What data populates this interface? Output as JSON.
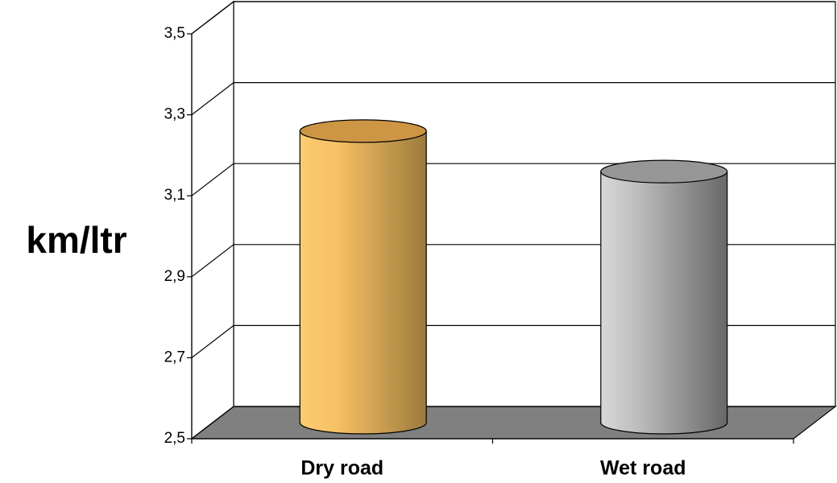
{
  "chart_data": {
    "type": "bar3d-cylinder",
    "ylabel": "km/ltr",
    "categories": [
      "Dry road",
      "Wet road"
    ],
    "values": [
      3.22,
      3.12
    ],
    "colors": [
      "#f0b050",
      "#b0b0b0"
    ],
    "ylim": [
      2.5,
      3.5
    ],
    "yticks": [
      {
        "value": 2.5,
        "label": "2,5"
      },
      {
        "value": 2.7,
        "label": "2,7"
      },
      {
        "value": 2.9,
        "label": "2,9"
      },
      {
        "value": 3.1,
        "label": "3,1"
      },
      {
        "value": 3.3,
        "label": "3,3"
      },
      {
        "value": 3.5,
        "label": "3,5"
      }
    ],
    "grid": true
  }
}
